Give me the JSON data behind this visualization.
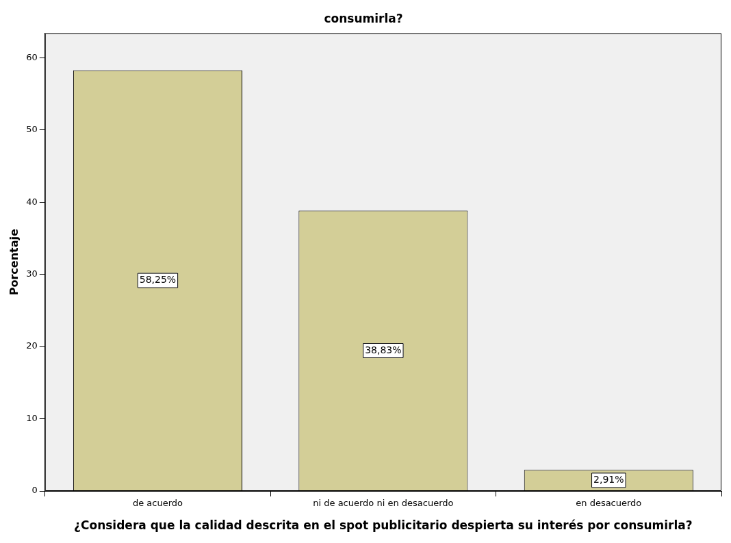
{
  "chart_data": {
    "type": "bar",
    "title": "consumirla?",
    "xlabel": "¿Considera que la calidad descrita en el spot publicitario despierta su interés por consumirla?",
    "ylabel": "Porcentaje",
    "categories": [
      "de acuerdo",
      "ni de acuerdo ni en desacuerdo",
      "en desacuerdo"
    ],
    "values": [
      58.25,
      38.83,
      2.91
    ],
    "value_labels": [
      "58,25%",
      "38,83%",
      "2,91%"
    ],
    "color": "#d3ce97",
    "ylim": [
      0,
      63.4
    ],
    "yticks": [
      0,
      10,
      20,
      30,
      40,
      50,
      60
    ],
    "grid": false,
    "legend": false
  }
}
